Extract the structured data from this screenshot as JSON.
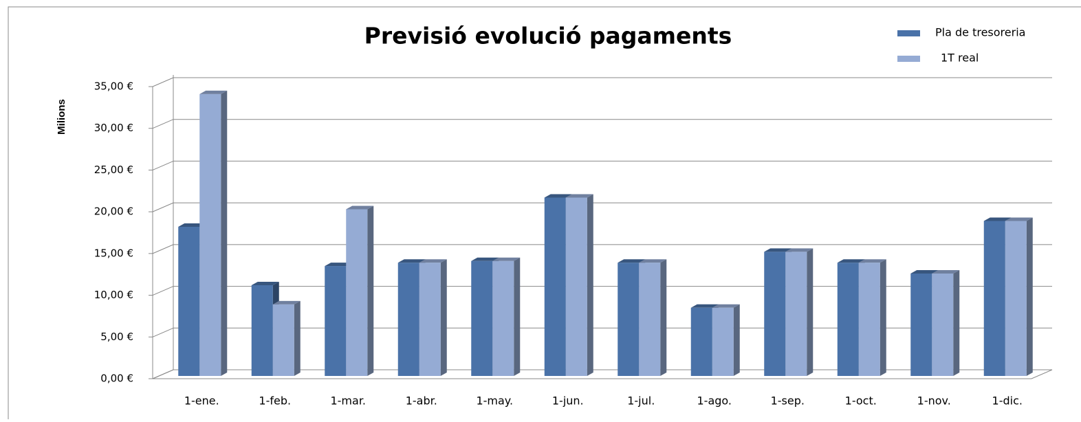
{
  "chart_data": {
    "type": "bar3d",
    "title": "Previsió evolució pagaments",
    "y_label": "Milions",
    "categories": [
      "1-ene.",
      "1-feb.",
      "1-mar.",
      "1-abr.",
      "1-may.",
      "1-jun.",
      "1-jul.",
      "1-ago.",
      "1-sep.",
      "1-oct.",
      "1-nov.",
      "1-dic."
    ],
    "series": [
      {
        "name": "Pla de tresoreria",
        "color": "#4a72a8",
        "values": [
          18.2,
          11.2,
          13.5,
          13.9,
          14.1,
          21.7,
          13.9,
          8.5,
          15.2,
          13.9,
          12.6,
          18.9
        ]
      },
      {
        "name": "1T real",
        "color": "#95abd4",
        "values": [
          34.1,
          8.9,
          20.3,
          13.9,
          14.1,
          21.7,
          13.9,
          8.5,
          15.2,
          13.9,
          12.6,
          18.9
        ]
      }
    ],
    "ylim": [
      0,
      35
    ],
    "yticks": [
      {
        "value": 0,
        "label": "0,00 €"
      },
      {
        "value": 5,
        "label": "5,00 €"
      },
      {
        "value": 10,
        "label": "10,00 €"
      },
      {
        "value": 15,
        "label": "15,00 €"
      },
      {
        "value": 20,
        "label": "20,00 €"
      },
      {
        "value": 25,
        "label": "25,00 €"
      },
      {
        "value": 30,
        "label": "30,00 €"
      },
      {
        "value": 35,
        "label": "35,00 €"
      }
    ],
    "grid": true,
    "legend": "top-right"
  }
}
